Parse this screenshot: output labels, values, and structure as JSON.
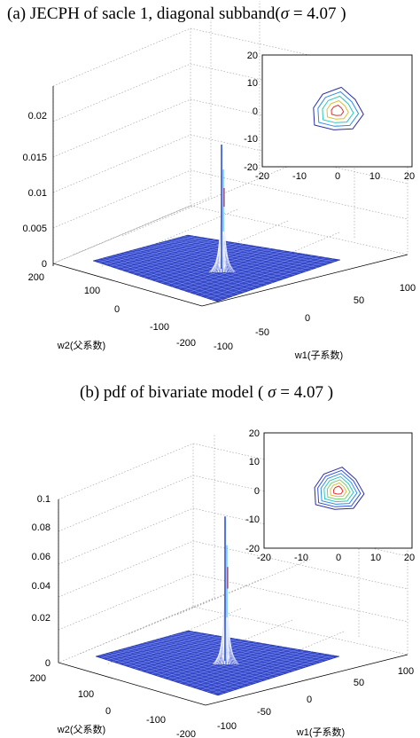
{
  "chart_data": [
    {
      "type": "surface",
      "title": {
        "prefix": "(a) JECPH of sacle 1, diagonal subband(",
        "sigma_symbol": "σ",
        "eq": " = ",
        "sigma_value": "4.07",
        "suffix": " )"
      },
      "zticks": [
        "0",
        "0.005",
        "0.01",
        "0.015",
        "0.02"
      ],
      "zlim": [
        0,
        0.02
      ],
      "w1_ticks": [
        "-100",
        "-50",
        "0",
        "50",
        "100"
      ],
      "w1_range": [
        -100,
        100
      ],
      "w2_ticks": [
        "200",
        "100",
        "0",
        "-100",
        "-200"
      ],
      "w2_range": [
        -200,
        200
      ],
      "w1_label": "w1(子系数)",
      "w2_label": "w2(父系数)",
      "peak": 0.0175,
      "inset": {
        "type": "contour",
        "x_ticks": [
          "-20",
          "-10",
          "0",
          "10",
          "20"
        ],
        "y_ticks": [
          "20",
          "10",
          "0",
          "-10",
          "-20"
        ],
        "xlim": [
          -20,
          20
        ],
        "ylim": [
          -20,
          20
        ],
        "center": [
          0,
          0
        ],
        "levels": 5,
        "colors": [
          "#2a2aa8",
          "#2e8ee8",
          "#28c8c0",
          "#d8c030",
          "#e03030"
        ]
      }
    },
    {
      "type": "surface",
      "title": {
        "prefix": "(b)     pdf of bivariate model ( ",
        "sigma_symbol": "σ",
        "eq": " = ",
        "sigma_value": "4.07",
        "suffix": " )"
      },
      "zticks": [
        "0",
        "0.02",
        "0.04",
        "0.06",
        "0.08",
        "0.1"
      ],
      "zlim": [
        0,
        0.1
      ],
      "w1_ticks": [
        "-100",
        "-50",
        "0",
        "50",
        "100"
      ],
      "w1_range": [
        -100,
        100
      ],
      "w2_ticks": [
        "200",
        "100",
        "0",
        "-100",
        "-200"
      ],
      "w2_range": [
        -200,
        200
      ],
      "w1_label": "w1(子系数)",
      "w2_label": "w2(父系数)",
      "peak": 0.088,
      "inset": {
        "type": "contour",
        "x_ticks": [
          "-20",
          "-10",
          "0",
          "10",
          "20"
        ],
        "y_ticks": [
          "20",
          "10",
          "0",
          "-10",
          "-20"
        ],
        "xlim": [
          -20,
          20
        ],
        "ylim": [
          -20,
          20
        ],
        "center": [
          0,
          0
        ],
        "levels": 7,
        "colors": [
          "#2a2aa8",
          "#3050d8",
          "#2e8ee8",
          "#28c8c0",
          "#70d070",
          "#d8c030",
          "#e03030"
        ]
      }
    }
  ]
}
